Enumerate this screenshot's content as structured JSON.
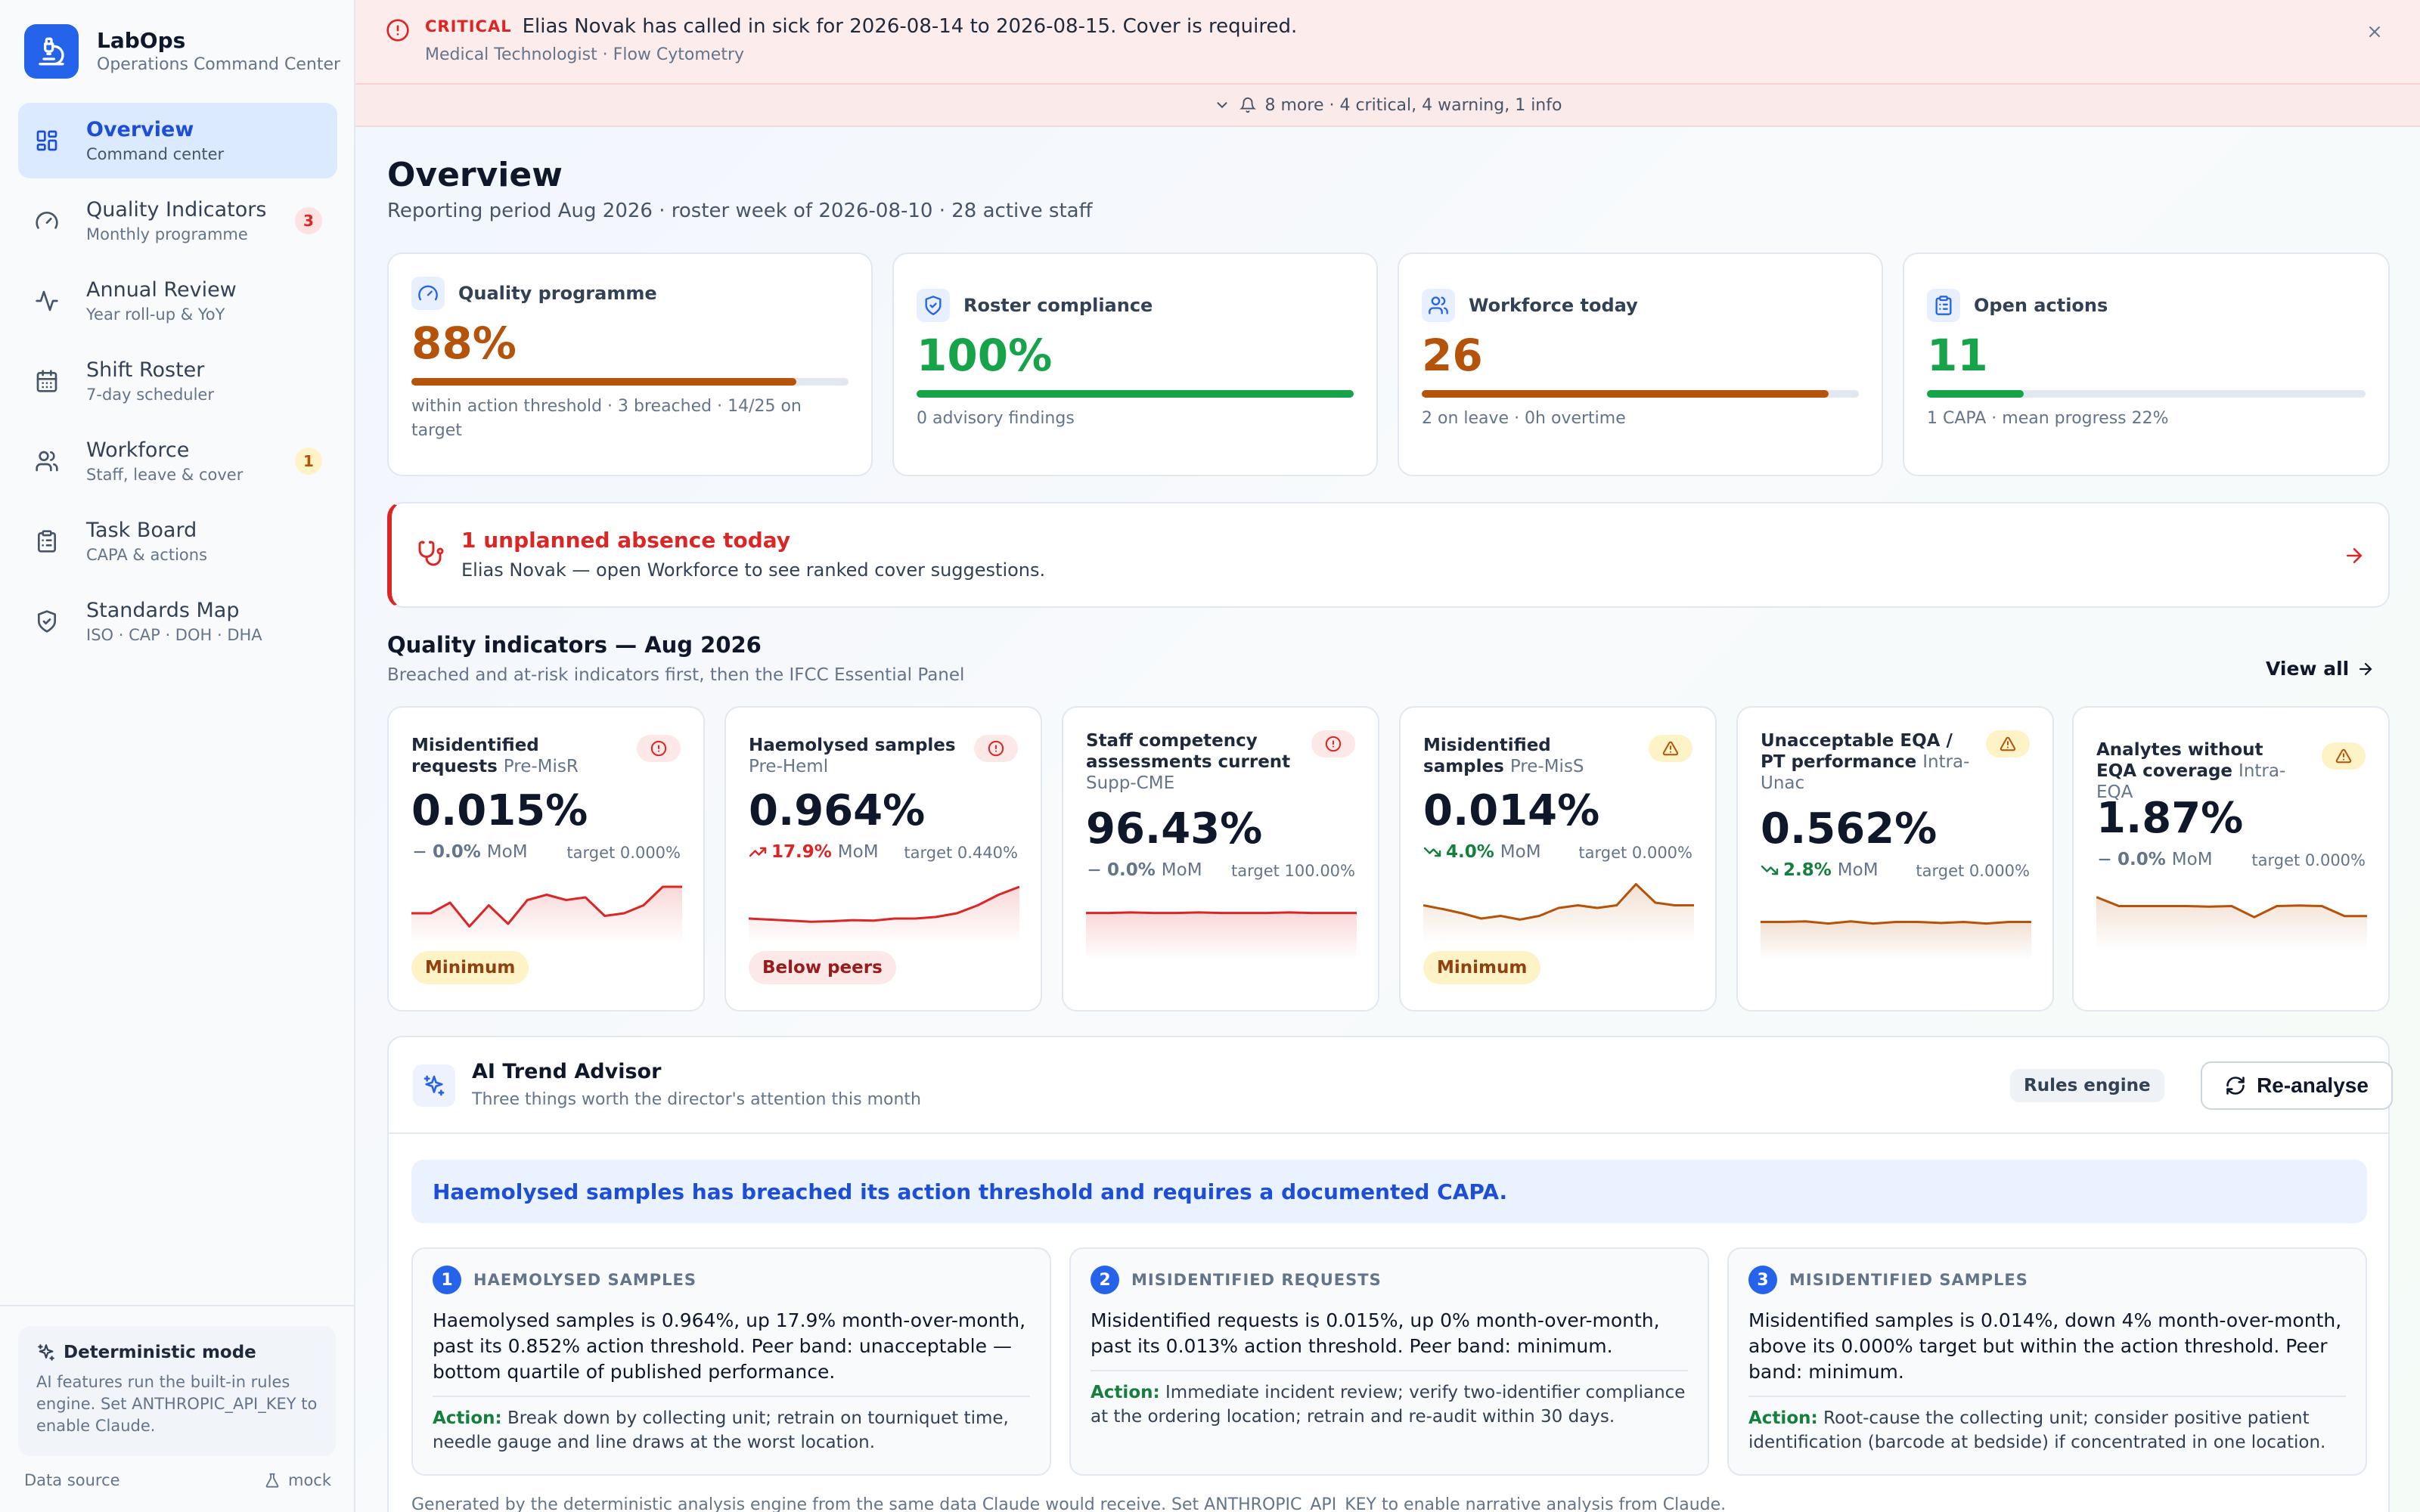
{
  "brand": {
    "name": "LabOps",
    "subtitle": "Operations Command Center"
  },
  "nav": [
    {
      "label": "Overview",
      "sub": "Command center",
      "icon": "grid-icon",
      "active": true
    },
    {
      "label": "Quality Indicators",
      "sub": "Monthly programme",
      "icon": "gauge-icon",
      "badge": "3"
    },
    {
      "label": "Annual Review",
      "sub": "Year roll-up & YoY",
      "icon": "activity-icon"
    },
    {
      "label": "Shift Roster",
      "sub": "7-day scheduler",
      "icon": "calendar-icon"
    },
    {
      "label": "Workforce",
      "sub": "Staff, leave & cover",
      "icon": "users-icon",
      "badge": "1"
    },
    {
      "label": "Task Board",
      "sub": "CAPA & actions",
      "icon": "clipboard-icon"
    },
    {
      "label": "Standards Map",
      "sub": "ISO · CAP · DOH · DHA",
      "icon": "shield-icon"
    }
  ],
  "footer": {
    "mode_title": "Deterministic mode",
    "mode_desc": "AI features run the built-in rules engine. Set ANTHROPIC_API_KEY to enable Claude.",
    "data_source_label": "Data source",
    "data_source_value": "mock"
  },
  "alert": {
    "level": "CRITICAL",
    "text": "Elias Novak has called in sick for 2026-08-14 to 2026-08-15. Cover is required.",
    "sub": "Medical Technologist · Flow Cytometry",
    "more": "8 more · 4 critical, 4 warning, 1 info"
  },
  "header": {
    "title": "Overview",
    "subtitle": "Reporting period Aug 2026 · roster week of 2026-08-10 · 28 active staff"
  },
  "kpis": [
    {
      "title": "Quality programme",
      "value": "88%",
      "progress": 0.88,
      "color": "#b45309",
      "note": "within action threshold · 3 breached · 14/25 on target",
      "icon": "gauge-icon"
    },
    {
      "title": "Roster compliance",
      "value": "100%",
      "progress": 1.0,
      "color": "#16a34a",
      "note": "0 advisory findings",
      "icon": "shield-check-icon"
    },
    {
      "title": "Workforce today",
      "value": "26",
      "progress": 0.93,
      "color": "#b45309",
      "note": "2 on leave · 0h overtime",
      "icon": "users-icon"
    },
    {
      "title": "Open actions",
      "value": "11",
      "progress": 0.22,
      "color": "#16a34a",
      "note": "1 CAPA · mean progress 22%",
      "icon": "clipboard-icon"
    }
  ],
  "absence": {
    "title": "1 unplanned absence today",
    "text": "Elias Novak — open Workforce to see ranked cover suggestions."
  },
  "quality": {
    "title": "Quality indicators — Aug 2026",
    "subtitle": "Breached and at-risk indicators first, then the IFCC Essential Panel",
    "view_all": "View all"
  },
  "indicators": [
    {
      "name": "Misidentified requests",
      "code": "Pre-MisR",
      "value": "0.015%",
      "mom": "0.0%",
      "mom_dir": "flat",
      "mom_label": "MoM",
      "target": "target 0.000%",
      "severity": "critical",
      "tag": "Minimum",
      "tag_type": "min",
      "spark": [
        0.4,
        0.4,
        0.6,
        0.15,
        0.55,
        0.2,
        0.65,
        0.75,
        0.65,
        0.7,
        0.35,
        0.4,
        0.55,
        0.9,
        0.9
      ],
      "spark_color": "#dc2626"
    },
    {
      "name": "Haemolysed samples",
      "code": "Pre-Heml",
      "value": "0.964%",
      "mom": "17.9%",
      "mom_dir": "up",
      "mom_label": "MoM",
      "target": "target 0.440%",
      "severity": "critical",
      "tag": "Below peers",
      "tag_type": "below",
      "spark": [
        0.3,
        0.28,
        0.26,
        0.24,
        0.25,
        0.27,
        0.26,
        0.3,
        0.3,
        0.33,
        0.4,
        0.55,
        0.75,
        0.9
      ],
      "spark_color": "#dc2626"
    },
    {
      "name": "Staff competency assessments current",
      "code": "Supp-CME",
      "value": "96.43%",
      "mom": "0.0%",
      "mom_dir": "flat",
      "mom_label": "MoM",
      "target": "target 100.00%",
      "severity": "critical",
      "spark": [
        0.72,
        0.72,
        0.73,
        0.72,
        0.72,
        0.73,
        0.72,
        0.72,
        0.72,
        0.73,
        0.72,
        0.72,
        0.72
      ],
      "spark_color": "#dc2626"
    },
    {
      "name": "Misidentified samples",
      "code": "Pre-MisS",
      "value": "0.014%",
      "mom": "4.0%",
      "mom_dir": "down",
      "mom_label": "MoM",
      "target": "target 0.000%",
      "severity": "warning",
      "tag": "Minimum",
      "tag_type": "min",
      "spark": [
        0.55,
        0.48,
        0.4,
        0.3,
        0.35,
        0.28,
        0.35,
        0.5,
        0.55,
        0.5,
        0.55,
        0.95,
        0.6,
        0.55,
        0.55
      ],
      "spark_color": "#b45309"
    },
    {
      "name": "Unacceptable EQA / PT performance",
      "code": "Intra-Unac",
      "value": "0.562%",
      "mom": "2.8%",
      "mom_dir": "down",
      "mom_label": "MoM",
      "target": "target 0.000%",
      "severity": "warning",
      "spark": [
        0.55,
        0.55,
        0.56,
        0.52,
        0.56,
        0.52,
        0.55,
        0.55,
        0.53,
        0.55,
        0.52,
        0.55,
        0.55
      ],
      "spark_color": "#b45309"
    },
    {
      "name": "Analytes without EQA coverage",
      "code": "Intra-EQA",
      "value": "1.87%",
      "mom": "0.0%",
      "mom_dir": "flat",
      "mom_label": "MoM",
      "target": "target 0.000%",
      "severity": "warning",
      "spark": [
        0.82,
        0.65,
        0.65,
        0.65,
        0.65,
        0.64,
        0.65,
        0.44,
        0.65,
        0.66,
        0.65,
        0.46,
        0.46
      ],
      "spark_color": "#b45309"
    }
  ],
  "advisor": {
    "title": "AI Trend Advisor",
    "subtitle": "Three things worth the director's attention this month",
    "engine": "Rules engine",
    "reanalyse": "Re-analyse",
    "headline": "Haemolysed samples has breached its action threshold and requires a documented CAPA.",
    "findings": [
      {
        "num": "1",
        "title": "HAEMOLYSED SAMPLES",
        "text": "Haemolysed samples is 0.964%, up 17.9% month-over-month, past its 0.852% action threshold. Peer band: unacceptable — bottom quartile of published performance.",
        "action_label": "Action:",
        "action": "Break down by collecting unit; retrain on tourniquet time, needle gauge and line draws at the worst location."
      },
      {
        "num": "2",
        "title": "MISIDENTIFIED REQUESTS",
        "text": "Misidentified requests is 0.015%, up 0% month-over-month, past its 0.013% action threshold. Peer band: minimum.",
        "action_label": "Action:",
        "action": "Immediate incident review; verify two-identifier compliance at the ordering location; retrain and re-audit within 30 days."
      },
      {
        "num": "3",
        "title": "MISIDENTIFIED SAMPLES",
        "text": "Misidentified samples is 0.014%, down 4% month-over-month, above its 0.000% target but within the action threshold. Peer band: minimum.",
        "action_label": "Action:",
        "action": "Root-cause the collecting unit; consider positive patient identification (barcode at bedside) if concentrated in one location."
      }
    ],
    "footnote": "Generated by the deterministic analysis engine from the same data Claude would receive. Set ANTHROPIC_API_KEY to enable narrative analysis from Claude."
  }
}
